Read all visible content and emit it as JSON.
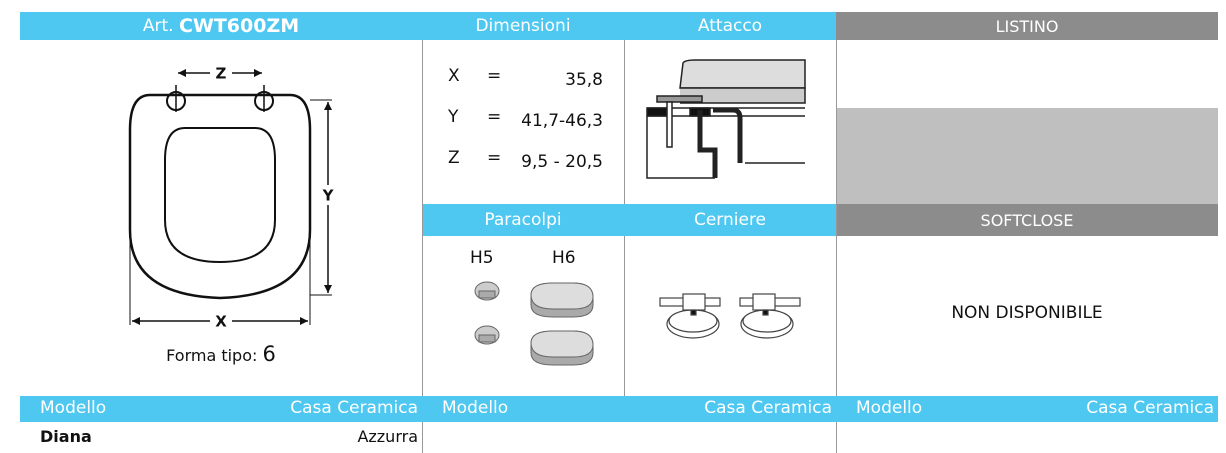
{
  "header": {
    "article_prefix": "Art.",
    "article_code": "CWT600ZM",
    "dimensions": "Dimensioni",
    "attachment": "Attacco",
    "price_list": "LISTINO"
  },
  "drawing": {
    "z_label": "Z",
    "y_label": "Y",
    "x_label": "X",
    "shape_label": "Forma tipo:",
    "shape_number": "6"
  },
  "dimensions": [
    {
      "label": "X",
      "sign": "=",
      "value": "35,8"
    },
    {
      "label": "Y",
      "sign": "=",
      "value": "41,7-46,3"
    },
    {
      "label": "Z",
      "sign": "=",
      "value": "9,5 - 20,5"
    }
  ],
  "subheader": {
    "bumpers": "Paracolpi",
    "hinges": "Cerniere",
    "softclose": "SOFTCLOSE"
  },
  "bumpers": {
    "small": "H5",
    "large": "H6"
  },
  "softclose_status": "NON DISPONIBILE",
  "compat_header": [
    {
      "model": "Modello",
      "brand": "Casa Ceramica"
    },
    {
      "model": "Modello",
      "brand": "Casa Ceramica"
    },
    {
      "model": "Modello",
      "brand": "Casa Ceramica"
    }
  ],
  "compat_rows": [
    {
      "model": "Diana",
      "brand": "Azzurra"
    }
  ]
}
